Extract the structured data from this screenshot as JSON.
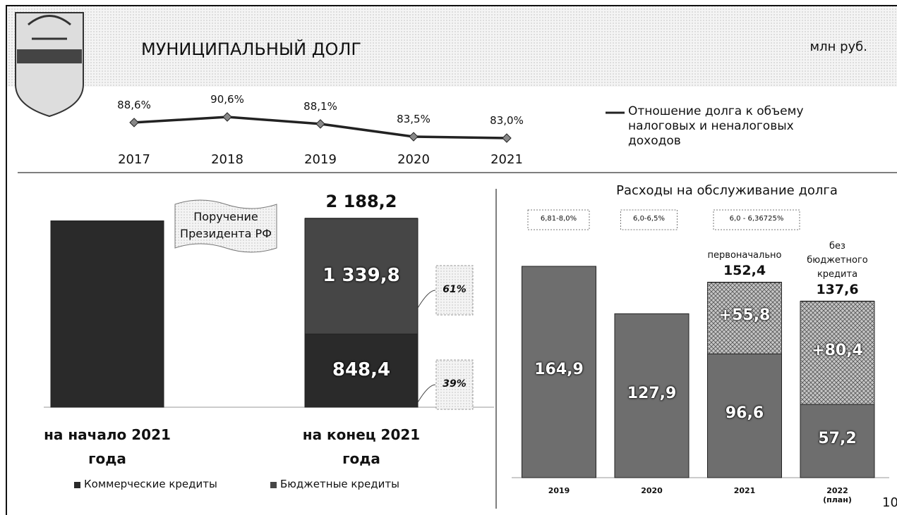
{
  "header": {
    "title": "МУНИЦИПАЛЬНЫЙ ДОЛГ",
    "unit": "млн руб.",
    "page_number": "10"
  },
  "chart_data": [
    {
      "type": "line",
      "categories": [
        "2017",
        "2018",
        "2019",
        "2020",
        "2021"
      ],
      "series": [
        {
          "name": "Отношение долга к объему налоговых и неналоговых доходов",
          "color": "#222222",
          "values": [
            88.6,
            90.6,
            88.1,
            83.5,
            83.0
          ],
          "value_labels": [
            "88,6%",
            "90,6%",
            "88,1%",
            "83,5%",
            "83,0%"
          ]
        }
      ]
    },
    {
      "type": "stacked_bar",
      "categories": [
        "на начало 2021 года",
        "на конец 2021 года"
      ],
      "series": [
        {
          "name": "Коммерческие кредиты",
          "color": "#2a2a2a",
          "values": [
            2160,
            848.4
          ],
          "value_labels": [
            null,
            "848,4"
          ],
          "share_values": [
            null,
            39
          ],
          "share_labels": [
            null,
            "39%"
          ]
        },
        {
          "name": "Бюджетные кредиты",
          "color": "#464646",
          "values": [
            null,
            1339.8
          ],
          "value_labels": [
            null,
            "1 339,8"
          ],
          "share_values": [
            null,
            61
          ],
          "share_labels": [
            null,
            "61%"
          ]
        }
      ],
      "totals": [
        null,
        2188.2
      ],
      "total_labels": [
        null,
        "2 188,2"
      ],
      "annotation": "Поручение Президента РФ"
    },
    {
      "type": "stacked_bar",
      "title": "Расходы на обслуживание долга",
      "categories": [
        "2019",
        "2020",
        "2021",
        "2022 (план)"
      ],
      "series": [
        {
          "color": "#6e6e6e",
          "values": [
            164.9,
            127.9,
            96.6,
            57.2
          ],
          "value_labels": [
            "164,9",
            "127,9",
            "96,6",
            "57,2"
          ]
        },
        {
          "color": "#c6c6c6",
          "values": [
            null,
            null,
            55.8,
            80.4
          ],
          "value_labels": [
            null,
            null,
            "+55,8",
            "+80,4"
          ]
        }
      ],
      "totals": [
        null,
        null,
        152.4,
        137.6
      ],
      "total_labels": [
        null,
        null,
        "152,4",
        "137,6"
      ],
      "total_notes": [
        null,
        null,
        "первоначально",
        "без бюджетного кредита"
      ],
      "rate_labels": [
        "6,81-8,0%",
        "6,0-6,5%",
        "6,0 - 6,36725%",
        null
      ]
    }
  ]
}
